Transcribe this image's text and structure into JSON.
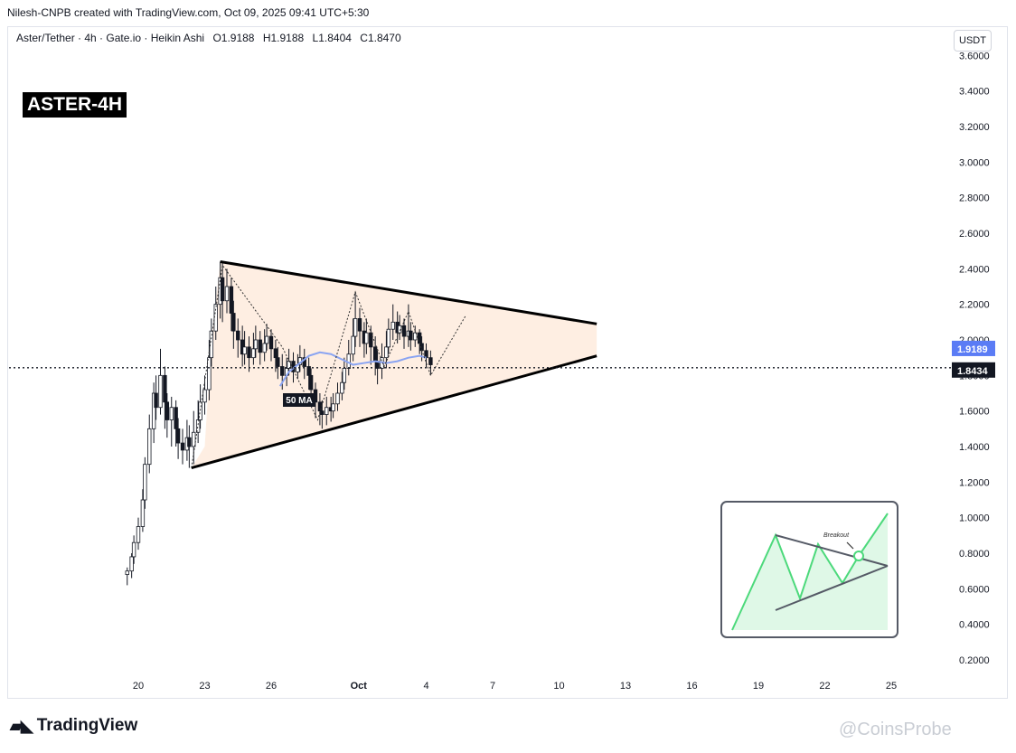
{
  "header": {
    "attribution": "Nilesh-CNPB created with TradingView.com, Oct 09, 2025 09:41 UTC+5:30",
    "symbol": "Aster/Tether · 4h · Gate.io · Heikin Ashi",
    "ohlc": {
      "open": "O1.9188",
      "high": "H1.9188",
      "low": "L1.8404",
      "close": "C1.8470"
    },
    "currency_button": "USDT"
  },
  "overlay_label": "ASTER-4H",
  "ma_label": "50 MA",
  "inset": {
    "label": "Breakout"
  },
  "footer": {
    "logo_text": "TradingView",
    "watermark": "@CoinsProbe"
  },
  "colors": {
    "up": "#131722",
    "down": "#131722",
    "pattern_fill": "#fde8d8",
    "ma": "#8aa4f2",
    "ma_badge": "#5b7cf5",
    "price_badge": "#131722",
    "inset_green": "#4cd97b"
  },
  "chart_data": {
    "type": "candlestick",
    "style": "Heikin Ashi",
    "ylim": [
      0.1,
      3.65
    ],
    "y_ticks": [
      "3.6000",
      "3.4000",
      "3.2000",
      "3.0000",
      "2.8000",
      "2.6000",
      "2.4000",
      "2.2000",
      "2.0000",
      "1.8000",
      "1.6000",
      "1.4000",
      "1.2000",
      "1.0000",
      "0.8000",
      "0.6000",
      "0.4000",
      "0.2000"
    ],
    "x_ticks": [
      "20",
      "23",
      "26",
      "Oct",
      "4",
      "7",
      "10",
      "13",
      "16",
      "19",
      "22",
      "25"
    ],
    "price_badges": [
      {
        "label": "1.9189",
        "value": 1.9189,
        "color": "#5b7cf5"
      },
      {
        "label": "1.8434",
        "value": 1.8434,
        "color": "#131722"
      }
    ],
    "last_price_line": 1.8434,
    "pattern": "symmetrical triangle",
    "upper_trendline": [
      {
        "x": 23.7,
        "y": 2.44
      },
      {
        "x": 40.7,
        "y": 2.09
      }
    ],
    "lower_trendline": [
      {
        "x": 22.4,
        "y": 1.28
      },
      {
        "x": 40.7,
        "y": 1.91
      }
    ],
    "candles": [
      [
        19.5,
        0.68,
        0.7,
        0.62,
        0.72
      ],
      [
        19.7,
        0.7,
        0.78,
        0.66,
        0.8
      ],
      [
        19.8,
        0.78,
        0.86,
        0.74,
        0.9
      ],
      [
        20.0,
        0.86,
        0.95,
        0.82,
        1.0
      ],
      [
        20.2,
        0.95,
        1.1,
        0.92,
        1.16
      ],
      [
        20.3,
        1.1,
        1.3,
        1.05,
        1.34
      ],
      [
        20.5,
        1.3,
        1.5,
        1.25,
        1.58
      ],
      [
        20.7,
        1.5,
        1.7,
        1.42,
        1.76
      ],
      [
        20.8,
        1.7,
        1.62,
        1.55,
        1.8
      ],
      [
        21.0,
        1.62,
        1.8,
        1.58,
        1.95
      ],
      [
        21.2,
        1.8,
        1.65,
        1.5,
        1.85
      ],
      [
        21.3,
        1.65,
        1.55,
        1.45,
        1.7
      ],
      [
        21.5,
        1.55,
        1.62,
        1.4,
        1.68
      ],
      [
        21.7,
        1.62,
        1.5,
        1.4,
        1.66
      ],
      [
        21.8,
        1.5,
        1.42,
        1.33,
        1.56
      ],
      [
        22.0,
        1.42,
        1.38,
        1.3,
        1.5
      ],
      [
        22.2,
        1.38,
        1.45,
        1.32,
        1.55
      ],
      [
        22.3,
        1.45,
        1.4,
        1.28,
        1.52
      ],
      [
        22.5,
        1.4,
        1.48,
        1.3,
        1.6
      ],
      [
        22.7,
        1.48,
        1.55,
        1.42,
        1.66
      ],
      [
        22.8,
        1.55,
        1.65,
        1.5,
        1.75
      ],
      [
        23.0,
        1.65,
        1.72,
        1.58,
        1.8
      ],
      [
        23.2,
        1.72,
        1.9,
        1.66,
        2.0
      ],
      [
        23.3,
        1.9,
        2.05,
        1.85,
        2.12
      ],
      [
        23.5,
        2.05,
        2.2,
        2.0,
        2.3
      ],
      [
        23.7,
        2.2,
        2.35,
        2.12,
        2.44
      ],
      [
        23.8,
        2.35,
        2.22,
        2.1,
        2.43
      ],
      [
        24.0,
        2.22,
        2.3,
        2.15,
        2.4
      ],
      [
        24.2,
        2.3,
        2.15,
        2.05,
        2.35
      ],
      [
        24.3,
        2.15,
        2.05,
        1.95,
        2.22
      ],
      [
        24.5,
        2.05,
        2.0,
        1.9,
        2.12
      ],
      [
        24.7,
        2.0,
        1.92,
        1.85,
        2.08
      ],
      [
        24.8,
        1.92,
        1.96,
        1.86,
        2.05
      ],
      [
        25.0,
        1.96,
        1.9,
        1.82,
        2.02
      ],
      [
        25.2,
        1.9,
        1.95,
        1.86,
        2.04
      ],
      [
        25.3,
        1.95,
        2.0,
        1.9,
        2.08
      ],
      [
        25.5,
        2.0,
        1.93,
        1.86,
        2.05
      ],
      [
        25.7,
        1.93,
        1.98,
        1.88,
        2.06
      ],
      [
        25.8,
        1.98,
        2.02,
        1.94,
        2.09
      ],
      [
        26.0,
        2.02,
        1.95,
        1.88,
        2.06
      ],
      [
        26.2,
        1.95,
        1.9,
        1.82,
        2.0
      ],
      [
        26.3,
        1.9,
        1.85,
        1.78,
        1.96
      ],
      [
        26.5,
        1.85,
        1.8,
        1.72,
        1.92
      ],
      [
        26.7,
        1.8,
        1.84,
        1.74,
        1.9
      ],
      [
        26.8,
        1.84,
        1.88,
        1.8,
        1.95
      ],
      [
        27.0,
        1.88,
        1.82,
        1.76,
        1.93
      ],
      [
        27.2,
        1.82,
        1.86,
        1.78,
        1.92
      ],
      [
        27.3,
        1.86,
        1.9,
        1.82,
        1.97
      ],
      [
        27.5,
        1.9,
        1.85,
        1.78,
        1.95
      ],
      [
        27.7,
        1.85,
        1.8,
        1.72,
        1.9
      ],
      [
        27.8,
        1.8,
        1.72,
        1.65,
        1.84
      ],
      [
        28.0,
        1.72,
        1.65,
        1.56,
        1.76
      ],
      [
        28.2,
        1.65,
        1.6,
        1.52,
        1.7
      ],
      [
        28.3,
        1.6,
        1.58,
        1.5,
        1.66
      ],
      [
        28.5,
        1.58,
        1.62,
        1.52,
        1.68
      ],
      [
        28.7,
        1.62,
        1.6,
        1.54,
        1.68
      ],
      [
        28.8,
        1.6,
        1.64,
        1.56,
        1.7
      ],
      [
        29.0,
        1.64,
        1.7,
        1.6,
        1.76
      ],
      [
        29.2,
        1.7,
        1.76,
        1.66,
        1.82
      ],
      [
        29.3,
        1.76,
        1.84,
        1.72,
        1.9
      ],
      [
        29.5,
        1.84,
        1.92,
        1.8,
        2.0
      ],
      [
        29.7,
        1.92,
        2.02,
        1.88,
        2.12
      ],
      [
        29.8,
        2.02,
        2.12,
        1.96,
        2.27
      ],
      [
        30.0,
        2.12,
        2.05,
        1.96,
        2.18
      ],
      [
        30.2,
        2.05,
        1.98,
        1.9,
        2.1
      ],
      [
        30.3,
        1.98,
        2.04,
        1.92,
        2.12
      ],
      [
        30.5,
        2.04,
        1.96,
        1.86,
        2.08
      ],
      [
        30.7,
        1.96,
        1.88,
        1.8,
        2.02
      ],
      [
        30.8,
        1.88,
        1.84,
        1.75,
        1.94
      ],
      [
        31.0,
        1.84,
        1.9,
        1.78,
        1.98
      ],
      [
        31.2,
        1.9,
        1.96,
        1.84,
        2.05
      ],
      [
        31.3,
        1.96,
        2.06,
        1.92,
        2.12
      ],
      [
        31.5,
        2.06,
        2.1,
        2.0,
        2.2
      ],
      [
        31.7,
        2.1,
        2.04,
        1.98,
        2.16
      ],
      [
        31.8,
        2.04,
        2.08,
        2.0,
        2.14
      ],
      [
        32.0,
        2.08,
        2.02,
        1.95,
        2.12
      ],
      [
        32.2,
        2.02,
        2.05,
        1.96,
        2.2
      ],
      [
        32.3,
        2.05,
        2.0,
        1.94,
        2.1
      ],
      [
        32.5,
        2.0,
        2.04,
        1.96,
        2.08
      ],
      [
        32.7,
        2.04,
        1.98,
        1.92,
        2.06
      ],
      [
        32.8,
        1.98,
        1.94,
        1.88,
        2.02
      ],
      [
        33.0,
        1.94,
        1.9,
        1.84,
        1.98
      ],
      [
        33.2,
        1.9,
        1.86,
        1.8,
        1.94
      ]
    ],
    "ma_50": [
      [
        26.4,
        1.74
      ],
      [
        26.8,
        1.82
      ],
      [
        27.2,
        1.86
      ],
      [
        27.7,
        1.91
      ],
      [
        28.2,
        1.93
      ],
      [
        28.7,
        1.92
      ],
      [
        29.2,
        1.89
      ],
      [
        29.7,
        1.86
      ],
      [
        30.2,
        1.87
      ],
      [
        30.7,
        1.88
      ],
      [
        31.2,
        1.87
      ],
      [
        31.7,
        1.88
      ],
      [
        32.2,
        1.9
      ],
      [
        32.7,
        1.91
      ],
      [
        33.0,
        1.9
      ]
    ],
    "zigzag_path": [
      [
        22.4,
        1.28
      ],
      [
        23.8,
        2.42
      ],
      [
        26.5,
        1.96
      ],
      [
        28.1,
        1.55
      ],
      [
        29.8,
        2.27
      ],
      [
        31.1,
        1.85
      ],
      [
        32.2,
        2.16
      ],
      [
        33.2,
        1.8
      ],
      [
        34.8,
        2.14
      ]
    ]
  }
}
